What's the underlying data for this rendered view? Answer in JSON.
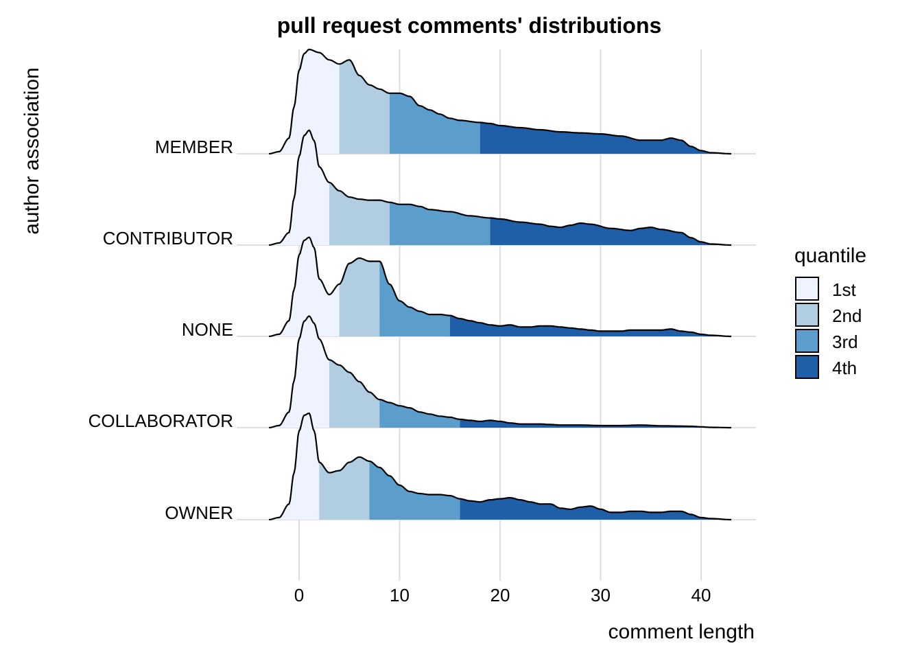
{
  "chart_data": {
    "type": "area",
    "subtype": "ridgeline",
    "title": "pull request comments' distributions",
    "xlabel": "comment length",
    "ylabel": "author association",
    "xlim": [
      -3.0,
      45.0
    ],
    "x_ticks": [
      0,
      10,
      20,
      30,
      40
    ],
    "grid": "vertical major gridlines",
    "legend": {
      "title": "quantile",
      "position": "right",
      "entries": [
        {
          "label": "1st",
          "color": "#eff3ff"
        },
        {
          "label": "2nd",
          "color": "#b0cde1"
        },
        {
          "label": "3rd",
          "color": "#5b9ecb"
        },
        {
          "label": "4th",
          "color": "#1f5fa8"
        }
      ]
    },
    "series": [
      {
        "name": "MEMBER",
        "quantile_breaks": [
          4,
          9,
          18
        ],
        "density": [
          [
            -3,
            0
          ],
          [
            -2,
            0.02
          ],
          [
            -1,
            0.15
          ],
          [
            -0.5,
            0.45
          ],
          [
            0,
            0.8
          ],
          [
            0.5,
            0.96
          ],
          [
            1,
            1.0
          ],
          [
            2,
            0.97
          ],
          [
            3,
            0.9
          ],
          [
            4,
            0.86
          ],
          [
            5,
            0.9
          ],
          [
            6,
            0.75
          ],
          [
            7,
            0.66
          ],
          [
            8,
            0.62
          ],
          [
            9,
            0.58
          ],
          [
            10,
            0.58
          ],
          [
            11,
            0.55
          ],
          [
            12,
            0.46
          ],
          [
            13,
            0.42
          ],
          [
            14,
            0.38
          ],
          [
            15,
            0.34
          ],
          [
            16,
            0.32
          ],
          [
            18,
            0.3
          ],
          [
            19,
            0.29
          ],
          [
            20,
            0.27
          ],
          [
            22,
            0.25
          ],
          [
            24,
            0.23
          ],
          [
            26,
            0.21
          ],
          [
            28,
            0.2
          ],
          [
            30,
            0.19
          ],
          [
            32,
            0.17
          ],
          [
            34,
            0.13
          ],
          [
            36,
            0.13
          ],
          [
            37,
            0.15
          ],
          [
            38,
            0.13
          ],
          [
            39,
            0.07
          ],
          [
            40,
            0.03
          ],
          [
            41,
            0.01
          ],
          [
            43,
            0
          ]
        ]
      },
      {
        "name": "CONTRIBUTOR",
        "quantile_breaks": [
          3,
          9,
          19
        ],
        "density": [
          [
            -3,
            0
          ],
          [
            -2,
            0.02
          ],
          [
            -1,
            0.12
          ],
          [
            -0.5,
            0.45
          ],
          [
            0,
            0.85
          ],
          [
            0.5,
            1.05
          ],
          [
            1,
            1.1
          ],
          [
            1.5,
            1.0
          ],
          [
            2,
            0.75
          ],
          [
            3,
            0.6
          ],
          [
            4,
            0.52
          ],
          [
            5,
            0.46
          ],
          [
            6,
            0.44
          ],
          [
            7,
            0.43
          ],
          [
            8,
            0.43
          ],
          [
            9,
            0.41
          ],
          [
            10,
            0.39
          ],
          [
            11,
            0.39
          ],
          [
            12,
            0.37
          ],
          [
            13,
            0.34
          ],
          [
            15,
            0.32
          ],
          [
            17,
            0.28
          ],
          [
            19,
            0.26
          ],
          [
            20,
            0.25
          ],
          [
            22,
            0.22
          ],
          [
            24,
            0.2
          ],
          [
            25,
            0.18
          ],
          [
            26,
            0.17
          ],
          [
            27,
            0.19
          ],
          [
            28,
            0.21
          ],
          [
            29,
            0.2
          ],
          [
            31,
            0.16
          ],
          [
            33,
            0.14
          ],
          [
            34,
            0.16
          ],
          [
            35,
            0.17
          ],
          [
            36,
            0.15
          ],
          [
            38,
            0.12
          ],
          [
            39,
            0.07
          ],
          [
            40,
            0.03
          ],
          [
            41,
            0.01
          ],
          [
            43,
            0
          ]
        ]
      },
      {
        "name": "NONE",
        "quantile_breaks": [
          4,
          8,
          15
        ],
        "density": [
          [
            -3,
            0
          ],
          [
            -2,
            0.02
          ],
          [
            -1,
            0.15
          ],
          [
            -0.5,
            0.45
          ],
          [
            0,
            0.78
          ],
          [
            0.5,
            0.92
          ],
          [
            1,
            0.95
          ],
          [
            1.5,
            0.85
          ],
          [
            2,
            0.55
          ],
          [
            3,
            0.4
          ],
          [
            4,
            0.5
          ],
          [
            5,
            0.7
          ],
          [
            6,
            0.75
          ],
          [
            7,
            0.72
          ],
          [
            8,
            0.72
          ],
          [
            9,
            0.5
          ],
          [
            10,
            0.34
          ],
          [
            11,
            0.28
          ],
          [
            12,
            0.24
          ],
          [
            13,
            0.21
          ],
          [
            14,
            0.21
          ],
          [
            15,
            0.2
          ],
          [
            16,
            0.17
          ],
          [
            17,
            0.15
          ],
          [
            18,
            0.13
          ],
          [
            19,
            0.11
          ],
          [
            20,
            0.1
          ],
          [
            21,
            0.11
          ],
          [
            22,
            0.09
          ],
          [
            23,
            0.09
          ],
          [
            24,
            0.1
          ],
          [
            25,
            0.1
          ],
          [
            26,
            0.09
          ],
          [
            27,
            0.08
          ],
          [
            28,
            0.07
          ],
          [
            29,
            0.06
          ],
          [
            30,
            0.05
          ],
          [
            31,
            0.05
          ],
          [
            32,
            0.05
          ],
          [
            33,
            0.06
          ],
          [
            34,
            0.06
          ],
          [
            35,
            0.06
          ],
          [
            36,
            0.06
          ],
          [
            37,
            0.07
          ],
          [
            38,
            0.05
          ],
          [
            39,
            0.04
          ],
          [
            40,
            0.02
          ],
          [
            41,
            0.01
          ],
          [
            43,
            0
          ]
        ]
      },
      {
        "name": "COLLABORATOR",
        "quantile_breaks": [
          3,
          8,
          16
        ],
        "density": [
          [
            -3,
            0
          ],
          [
            -2,
            0.02
          ],
          [
            -1,
            0.15
          ],
          [
            -0.5,
            0.45
          ],
          [
            0,
            0.85
          ],
          [
            0.5,
            1.02
          ],
          [
            1,
            1.07
          ],
          [
            1.5,
            1.0
          ],
          [
            2,
            0.85
          ],
          [
            3,
            0.65
          ],
          [
            4,
            0.6
          ],
          [
            5,
            0.53
          ],
          [
            6,
            0.44
          ],
          [
            7,
            0.34
          ],
          [
            8,
            0.27
          ],
          [
            9,
            0.24
          ],
          [
            10,
            0.21
          ],
          [
            11,
            0.19
          ],
          [
            12,
            0.15
          ],
          [
            13,
            0.13
          ],
          [
            14,
            0.11
          ],
          [
            15,
            0.1
          ],
          [
            16,
            0.08
          ],
          [
            17,
            0.07
          ],
          [
            18,
            0.06
          ],
          [
            19,
            0.07
          ],
          [
            20,
            0.06
          ],
          [
            21,
            0.045
          ],
          [
            22,
            0.035
          ],
          [
            23,
            0.035
          ],
          [
            24,
            0.035
          ],
          [
            25,
            0.03
          ],
          [
            26,
            0.025
          ],
          [
            28,
            0.025
          ],
          [
            30,
            0.02
          ],
          [
            32,
            0.02
          ],
          [
            34,
            0.025
          ],
          [
            36,
            0.018
          ],
          [
            38,
            0.015
          ],
          [
            39,
            0.013
          ],
          [
            40,
            0.008
          ],
          [
            41,
            0.003
          ],
          [
            43,
            0
          ]
        ]
      },
      {
        "name": "OWNER",
        "quantile_breaks": [
          2,
          7,
          16
        ],
        "density": [
          [
            -3,
            0
          ],
          [
            -2,
            0.02
          ],
          [
            -1,
            0.15
          ],
          [
            -0.5,
            0.45
          ],
          [
            0,
            0.85
          ],
          [
            0.5,
            1.0
          ],
          [
            1,
            1.02
          ],
          [
            1.5,
            0.85
          ],
          [
            2,
            0.55
          ],
          [
            3,
            0.45
          ],
          [
            4,
            0.47
          ],
          [
            5,
            0.55
          ],
          [
            6,
            0.6
          ],
          [
            7,
            0.56
          ],
          [
            8,
            0.5
          ],
          [
            9,
            0.42
          ],
          [
            10,
            0.33
          ],
          [
            11,
            0.27
          ],
          [
            12,
            0.25
          ],
          [
            13,
            0.24
          ],
          [
            14,
            0.24
          ],
          [
            15,
            0.23
          ],
          [
            16,
            0.2
          ],
          [
            17,
            0.18
          ],
          [
            18,
            0.17
          ],
          [
            19,
            0.19
          ],
          [
            20,
            0.2
          ],
          [
            21,
            0.21
          ],
          [
            22,
            0.19
          ],
          [
            23,
            0.17
          ],
          [
            24,
            0.15
          ],
          [
            25,
            0.15
          ],
          [
            26,
            0.11
          ],
          [
            27,
            0.1
          ],
          [
            28,
            0.12
          ],
          [
            29,
            0.13
          ],
          [
            30,
            0.1
          ],
          [
            31,
            0.07
          ],
          [
            32,
            0.07
          ],
          [
            33,
            0.08
          ],
          [
            34,
            0.08
          ],
          [
            35,
            0.07
          ],
          [
            36,
            0.07
          ],
          [
            37,
            0.08
          ],
          [
            38,
            0.08
          ],
          [
            39,
            0.05
          ],
          [
            40,
            0.02
          ],
          [
            41,
            0.01
          ],
          [
            43,
            0
          ]
        ]
      }
    ]
  }
}
